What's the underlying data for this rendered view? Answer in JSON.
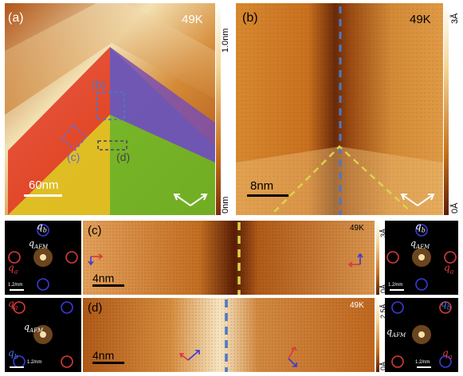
{
  "panel_a": {
    "label": "(a)",
    "temp": "49K",
    "scale_text": "60nm",
    "cbar_top": "1.0nm",
    "cbar_bottom": "0nm",
    "box_b": "(b)",
    "box_c": "(c)",
    "box_d": "(d)"
  },
  "panel_b": {
    "label": "(b)",
    "temp": "49K",
    "scale_text": "8nm",
    "cbar_top": "3Å",
    "cbar_bottom": "0Å"
  },
  "panel_c": {
    "label": "(c)",
    "temp": "49K",
    "scale_text": "4nm",
    "cbar_top": "3Å",
    "cbar_bottom": "0Å",
    "fft_scale": "1.2/nm"
  },
  "panel_d": {
    "label": "(d)",
    "temp": "49K",
    "scale_text": "4nm",
    "cbar_top": "2.5Å",
    "cbar_bottom": "0Å",
    "fft_scale": "1.2/nm"
  },
  "fft": {
    "qa": "q",
    "qa_sub": "a",
    "qb": "q",
    "qb_sub": "b",
    "qafm": "q",
    "qafm_sub": "AFM"
  },
  "colors": {
    "stm_orange": "#c76b1c",
    "highlight": "#f4e7c4",
    "domain_red": "#e2361f",
    "domain_purple": "#7a4fb0",
    "domain_yellow": "#d8b818",
    "domain_green": "#6cb826",
    "dashed_blue": "#4a78c8",
    "dashed_yellow": "#d8d44a"
  }
}
